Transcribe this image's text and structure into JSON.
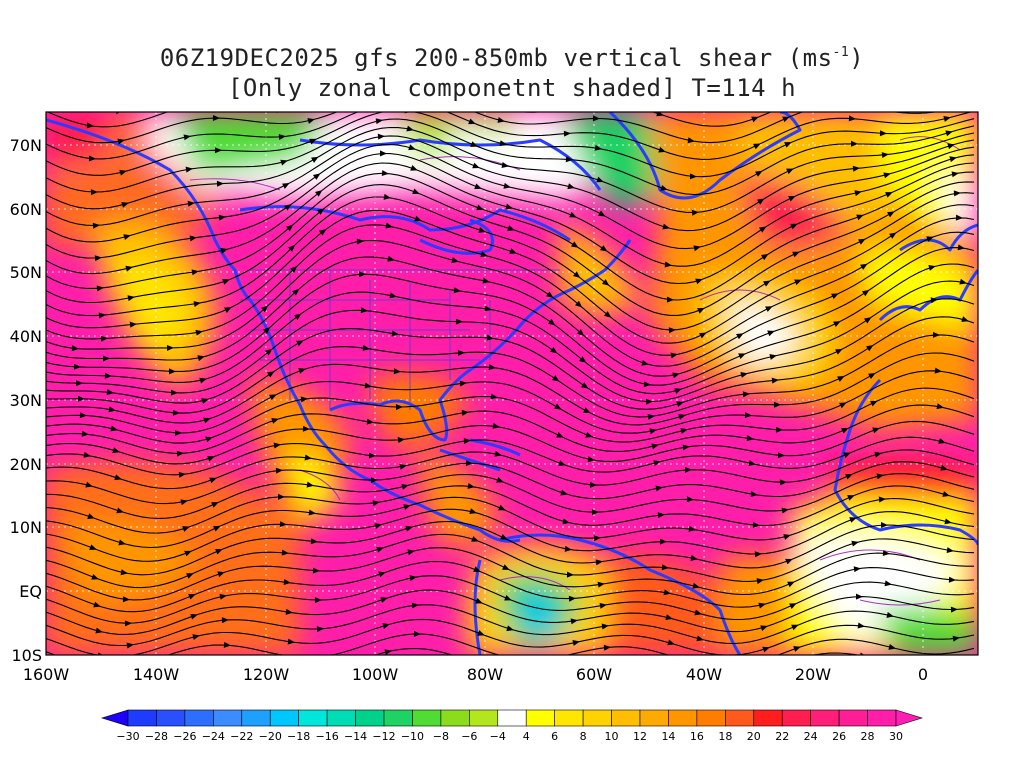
{
  "title": {
    "line1_pre": "06Z19DEC2025 gfs 200-850mb vertical shear (ms",
    "line1_sup": "-1",
    "line1_post": ")",
    "line2": "[Only zonal componetnt shaded] T=114 h"
  },
  "axes": {
    "lon_labels": [
      "160W",
      "140W",
      "120W",
      "100W",
      "80W",
      "60W",
      "40W",
      "20W",
      "0"
    ],
    "lon_values": [
      -160,
      -140,
      -120,
      -100,
      -80,
      -60,
      -40,
      -20,
      0
    ],
    "lat_labels": [
      "70N",
      "60N",
      "50N",
      "40N",
      "30N",
      "20N",
      "10N",
      "EQ",
      "10S"
    ],
    "lat_values": [
      70,
      60,
      50,
      40,
      30,
      20,
      10,
      0,
      -10
    ],
    "lon_range": [
      -160,
      10
    ],
    "lat_range": [
      -10,
      75
    ]
  },
  "colorbar": {
    "labels": [
      "-30",
      "-28",
      "-26",
      "-24",
      "-22",
      "-20",
      "-18",
      "-16",
      "-14",
      "-12",
      "-10",
      "-8",
      "-6",
      "-4",
      "4",
      "6",
      "8",
      "10",
      "12",
      "14",
      "16",
      "18",
      "20",
      "22",
      "24",
      "26",
      "28",
      "30"
    ],
    "colors": [
      "#1e3cff",
      "#2850ff",
      "#2d6eff",
      "#3c8cff",
      "#1ea0ff",
      "#00c8ff",
      "#00e6dc",
      "#00dcb4",
      "#00d28c",
      "#1ed264",
      "#50dc32",
      "#8cdc1e",
      "#b4e61e",
      "#ffffff",
      "#ffff00",
      "#ffe600",
      "#ffd200",
      "#ffbe00",
      "#ffaa00",
      "#ff9600",
      "#ff7d00",
      "#ff5a1e",
      "#ff1e1e",
      "#ff1e50",
      "#ff1e78",
      "#ff1e96",
      "#ff1eaa"
    ],
    "min_color": "#1e00ff",
    "max_color": "#ff1eb4"
  },
  "regions": [
    {
      "name": "pacific-jet-north",
      "color": "#ff1eaa"
    },
    {
      "name": "pacific-trough",
      "color": "#ff9600"
    },
    {
      "name": "north-america-core",
      "color": "#ff1eaa"
    },
    {
      "name": "arctic-low-shear",
      "color": "#50dc32"
    },
    {
      "name": "atlantic-ridge",
      "color": "#ffd200"
    },
    {
      "name": "south-america-low",
      "color": "#00d28c"
    },
    {
      "name": "africa-low",
      "color": "#ffff00"
    }
  ]
}
